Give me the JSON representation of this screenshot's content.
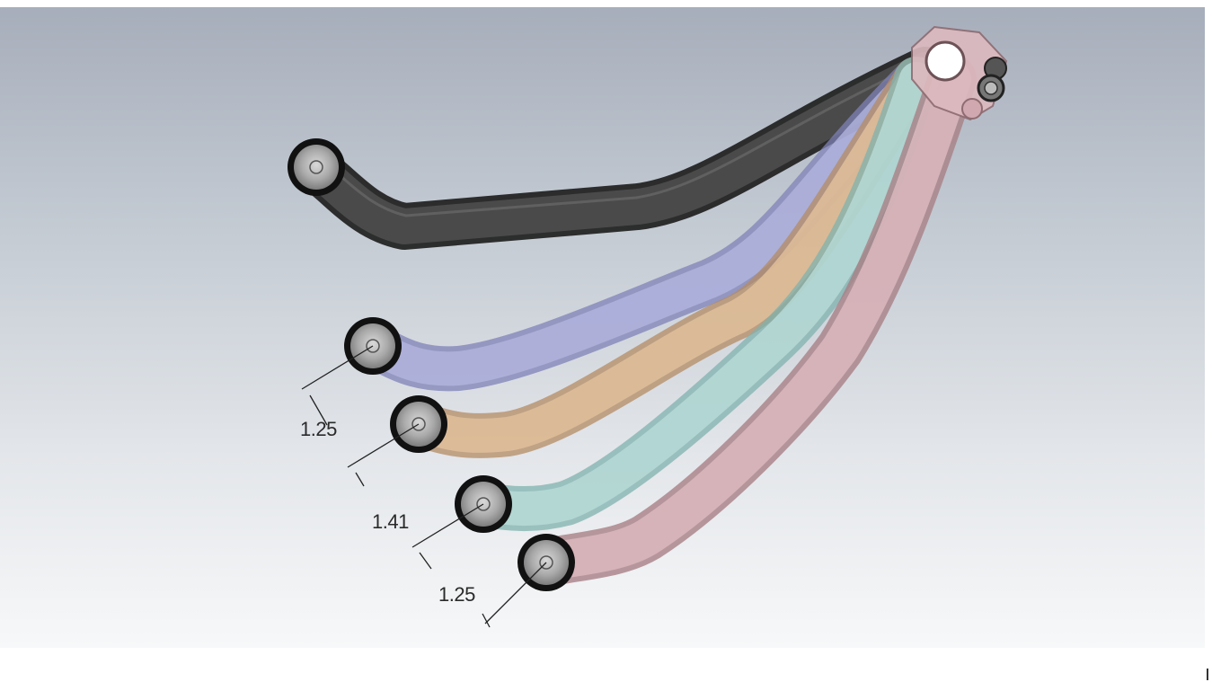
{
  "dimensions": {
    "d1": "1.25",
    "d2": "1.41",
    "d3": "1.25"
  },
  "arms": [
    {
      "name": "black-arm",
      "color": "#3d3d3d"
    },
    {
      "name": "purple-arm",
      "color": "#aeb0d8"
    },
    {
      "name": "orange-arm",
      "color": "#d9b690"
    },
    {
      "name": "teal-arm",
      "color": "#aed2ce"
    },
    {
      "name": "pink-arm",
      "color": "#d8b3b9"
    }
  ]
}
